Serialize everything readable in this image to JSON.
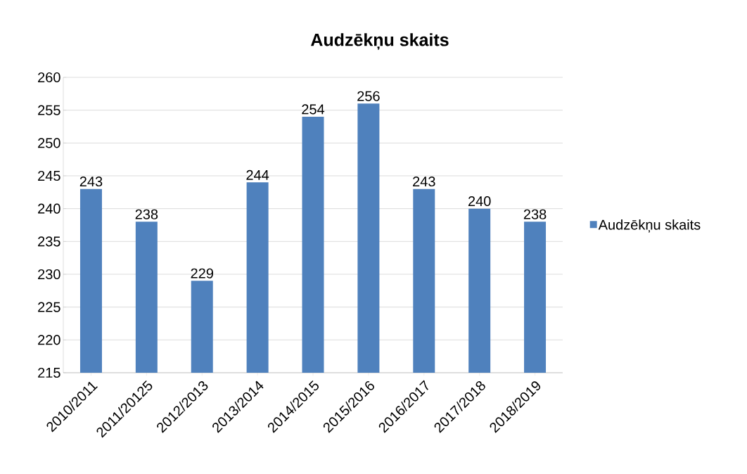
{
  "chart_data": {
    "type": "bar",
    "title": "Audzēkņu skaits",
    "categories": [
      "2010/2011",
      "2011/20125",
      "2012/2013",
      "2013/2014",
      "2014/2015",
      "2015/2016",
      "2016/2017",
      "2017/2018",
      "2018/2019"
    ],
    "series": [
      {
        "name": "Audzēkņu skaits",
        "color": "#4f81bd",
        "values": [
          243,
          238,
          229,
          244,
          254,
          256,
          243,
          240,
          238
        ]
      }
    ],
    "ylim": [
      215,
      260
    ],
    "yticks": [
      215,
      220,
      225,
      230,
      235,
      240,
      245,
      250,
      255,
      260
    ],
    "grid": "y",
    "legend": "right",
    "data_labels": true
  }
}
